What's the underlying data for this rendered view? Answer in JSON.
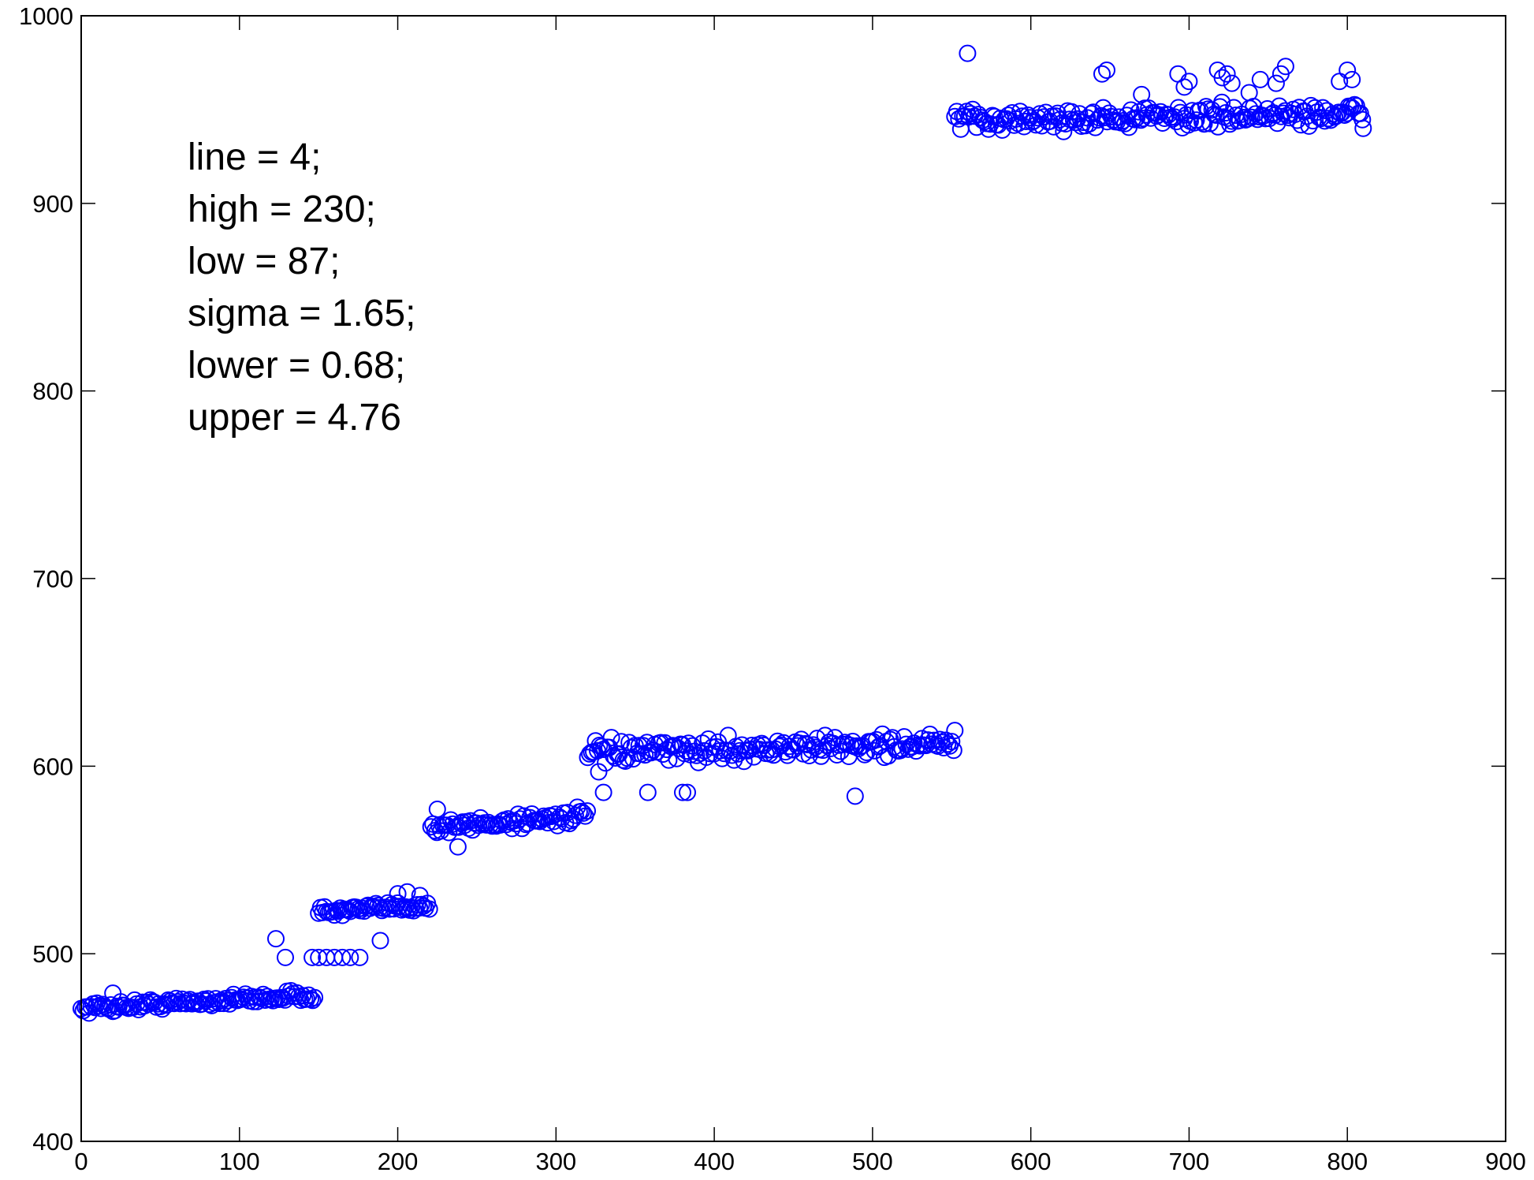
{
  "chart_data": {
    "type": "scatter",
    "title": "",
    "xlabel": "",
    "ylabel": "",
    "xlim": [
      0,
      900
    ],
    "ylim": [
      400,
      1000
    ],
    "xticks": [
      0,
      100,
      200,
      300,
      400,
      500,
      600,
      700,
      800,
      900
    ],
    "yticks": [
      400,
      500,
      600,
      700,
      800,
      900,
      1000
    ],
    "xtick_labels": [
      "0",
      "100",
      "200",
      "300",
      "400",
      "500",
      "600",
      "700",
      "800",
      "900"
    ],
    "ytick_labels": [
      "400",
      "500",
      "600",
      "700",
      "800",
      "900",
      "1000"
    ],
    "grid": false,
    "marker": "open-circle",
    "color": "#0000ff",
    "annotation": [
      "line = 4;",
      "high = 230;",
      "low = 87;",
      "sigma = 1.65;",
      "lower = 0.68;",
      "upper = 4.76"
    ],
    "segments": [
      {
        "x_start": 0,
        "x_end": 148,
        "y_start": 471,
        "y_end": 478,
        "noise": 2
      },
      {
        "x_start": 150,
        "x_end": 220,
        "y_start": 522,
        "y_end": 526,
        "noise": 2
      },
      {
        "x_start": 221,
        "x_end": 320,
        "y_start": 567,
        "y_end": 574,
        "noise": 3
      },
      {
        "x_start": 320,
        "x_end": 552,
        "y_start": 607,
        "y_end": 612,
        "noise": 4
      },
      {
        "x_start": 552,
        "x_end": 810,
        "y_start": 944,
        "y_end": 948,
        "noise": 4
      }
    ],
    "outliers": [
      {
        "x": 20,
        "y": 479
      },
      {
        "x": 123,
        "y": 508
      },
      {
        "x": 129,
        "y": 498
      },
      {
        "x": 146,
        "y": 498
      },
      {
        "x": 150,
        "y": 498
      },
      {
        "x": 155,
        "y": 498
      },
      {
        "x": 160,
        "y": 498
      },
      {
        "x": 165,
        "y": 498
      },
      {
        "x": 170,
        "y": 498
      },
      {
        "x": 176,
        "y": 498
      },
      {
        "x": 189,
        "y": 507
      },
      {
        "x": 200,
        "y": 532
      },
      {
        "x": 206,
        "y": 533
      },
      {
        "x": 214,
        "y": 531
      },
      {
        "x": 225,
        "y": 577
      },
      {
        "x": 238,
        "y": 557
      },
      {
        "x": 327,
        "y": 597
      },
      {
        "x": 330,
        "y": 586
      },
      {
        "x": 358,
        "y": 586
      },
      {
        "x": 380,
        "y": 586
      },
      {
        "x": 383,
        "y": 586
      },
      {
        "x": 489,
        "y": 584
      },
      {
        "x": 552,
        "y": 619
      },
      {
        "x": 560,
        "y": 980
      },
      {
        "x": 645,
        "y": 969
      },
      {
        "x": 648,
        "y": 971
      },
      {
        "x": 670,
        "y": 958
      },
      {
        "x": 693,
        "y": 969
      },
      {
        "x": 697,
        "y": 962
      },
      {
        "x": 700,
        "y": 965
      },
      {
        "x": 718,
        "y": 971
      },
      {
        "x": 721,
        "y": 967
      },
      {
        "x": 724,
        "y": 969
      },
      {
        "x": 727,
        "y": 964
      },
      {
        "x": 738,
        "y": 959
      },
      {
        "x": 745,
        "y": 966
      },
      {
        "x": 755,
        "y": 964
      },
      {
        "x": 758,
        "y": 969
      },
      {
        "x": 761,
        "y": 973
      },
      {
        "x": 795,
        "y": 965
      },
      {
        "x": 800,
        "y": 971
      },
      {
        "x": 803,
        "y": 966
      },
      {
        "x": 810,
        "y": 940
      }
    ]
  }
}
